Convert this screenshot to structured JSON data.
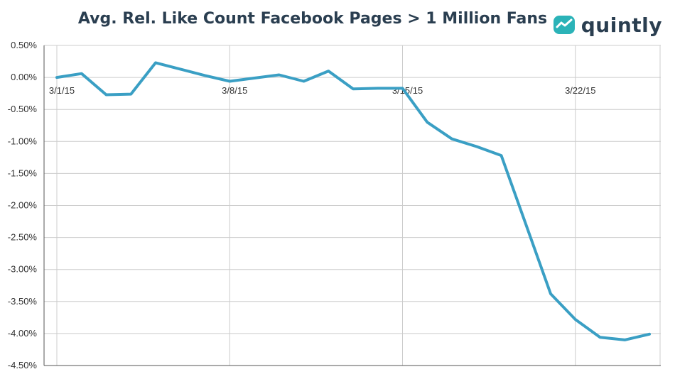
{
  "chart_data": {
    "type": "line",
    "title": "Avg. Rel. Like Count Facebook Pages > 1 Million Fans",
    "xlabel": "",
    "ylabel": "",
    "ylim": [
      -4.5,
      0.5
    ],
    "y_ticks": [
      "0.50%",
      "0.00%",
      "-0.50%",
      "-1.00%",
      "-1.50%",
      "-2.00%",
      "-2.50%",
      "-3.00%",
      "-3.50%",
      "-4.00%",
      "-4.50%"
    ],
    "y_tick_values": [
      0.5,
      0.0,
      -0.5,
      -1.0,
      -1.5,
      -2.0,
      -2.5,
      -3.0,
      -3.5,
      -4.0,
      -4.5
    ],
    "x_ticks": [
      "3/1/15",
      "3/8/15",
      "3/15/15",
      "3/22/15"
    ],
    "x_tick_index": [
      0,
      7,
      14,
      21
    ],
    "grid": true,
    "legend": "none",
    "series": [
      {
        "name": "Avg. Rel. Like Count",
        "color": "#3a9fc4",
        "x": [
          "3/1/15",
          "3/2/15",
          "3/3/15",
          "3/4/15",
          "3/5/15",
          "3/6/15",
          "3/7/15",
          "3/8/15",
          "3/9/15",
          "3/10/15",
          "3/11/15",
          "3/12/15",
          "3/13/15",
          "3/14/15",
          "3/15/15",
          "3/16/15",
          "3/17/15",
          "3/18/15",
          "3/19/15",
          "3/20/15",
          "3/21/15",
          "3/22/15",
          "3/23/15",
          "3/24/15",
          "3/25/15"
        ],
        "values": [
          0.0,
          0.06,
          -0.27,
          -0.26,
          0.23,
          0.13,
          0.03,
          -0.06,
          -0.01,
          0.04,
          -0.06,
          0.1,
          -0.18,
          -0.17,
          -0.17,
          -0.7,
          -0.96,
          -1.08,
          -1.22,
          -2.3,
          -3.38,
          -3.78,
          -4.06,
          -4.1,
          -4.01
        ]
      }
    ]
  },
  "header": {
    "logo_text": "quintly"
  },
  "colors": {
    "line": "#3a9fc4",
    "title": "#2a3e50",
    "grid": "#cccccc"
  }
}
